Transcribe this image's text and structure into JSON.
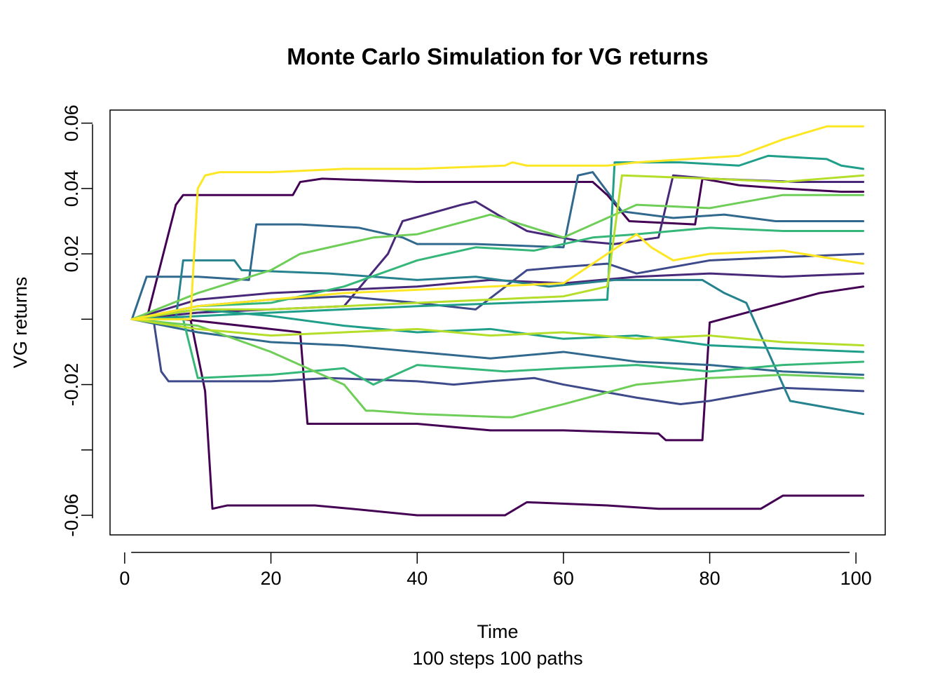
{
  "chart_data": {
    "type": "line",
    "title": "Monte Carlo Simulation for VG returns",
    "xlabel": "Time",
    "subtitle": "100 steps 100 paths",
    "ylabel": "VG returns",
    "xlim": [
      -2,
      104
    ],
    "ylim": [
      -0.066,
      0.064
    ],
    "x_ticks": [
      0,
      20,
      40,
      60,
      80,
      100
    ],
    "y_ticks": [
      -0.06,
      -0.04,
      -0.02,
      0,
      0.02,
      0.04,
      0.06
    ],
    "y_tick_labels": [
      "-0.06",
      "",
      "-0.02",
      "",
      "0.02",
      "0.04",
      "0.06"
    ],
    "grid": false,
    "legend": "none",
    "path_count": 100,
    "steps": 100,
    "palette": [
      "#440154",
      "#482878",
      "#3E4A89",
      "#31688E",
      "#26828E",
      "#1F9E89",
      "#35B779",
      "#6ECE58",
      "#B5DE2B",
      "#FDE725"
    ],
    "series": [
      {
        "color": "#440154",
        "x": [
          1,
          3,
          7,
          8,
          23,
          24,
          27,
          40,
          47,
          64,
          66,
          69,
          78,
          79,
          84,
          90,
          98,
          101
        ],
        "values": [
          0,
          0,
          0.035,
          0.038,
          0.038,
          0.042,
          0.043,
          0.042,
          0.042,
          0.042,
          0.038,
          0.03,
          0.029,
          0.043,
          0.041,
          0.04,
          0.039,
          0.039
        ]
      },
      {
        "color": "#440154",
        "x": [
          1,
          9,
          11,
          12,
          14,
          26,
          31,
          40,
          47,
          52,
          55,
          66,
          73,
          80,
          87,
          90,
          97,
          101
        ],
        "values": [
          0,
          0,
          -0.022,
          -0.058,
          -0.057,
          -0.057,
          -0.058,
          -0.06,
          -0.06,
          -0.06,
          -0.056,
          -0.057,
          -0.058,
          -0.058,
          -0.058,
          -0.054,
          -0.054,
          -0.054
        ]
      },
      {
        "color": "#440154",
        "x": [
          1,
          8,
          24,
          25,
          32,
          40,
          50,
          60,
          73,
          74,
          79,
          80,
          95,
          101
        ],
        "values": [
          0,
          0,
          -0.004,
          -0.032,
          -0.032,
          -0.032,
          -0.034,
          -0.034,
          -0.035,
          -0.037,
          -0.037,
          -0.001,
          0.008,
          0.01
        ]
      },
      {
        "color": "#482878",
        "x": [
          1,
          10,
          20,
          30,
          36,
          38,
          46,
          48,
          51,
          55,
          62,
          67,
          73,
          75,
          80,
          92,
          101
        ],
        "values": [
          0,
          0.002,
          0.003,
          0.004,
          0.02,
          0.03,
          0.035,
          0.036,
          0.032,
          0.027,
          0.024,
          0.023,
          0.025,
          0.044,
          0.043,
          0.042,
          0.042
        ]
      },
      {
        "color": "#482878",
        "x": [
          1,
          10,
          20,
          30,
          40,
          50,
          60,
          70,
          80,
          90,
          101
        ],
        "values": [
          0,
          0.006,
          0.008,
          0.009,
          0.01,
          0.012,
          0.011,
          0.013,
          0.014,
          0.013,
          0.014
        ]
      },
      {
        "color": "#3E4A89",
        "x": [
          1,
          4,
          5,
          6,
          10,
          20,
          28,
          40,
          45,
          50,
          56,
          60,
          70,
          73,
          76,
          80,
          90,
          101
        ],
        "values": [
          0,
          -0.001,
          -0.016,
          -0.019,
          -0.019,
          -0.019,
          -0.018,
          -0.019,
          -0.02,
          -0.019,
          -0.018,
          -0.02,
          -0.024,
          -0.025,
          -0.026,
          -0.025,
          -0.021,
          -0.022
        ]
      },
      {
        "color": "#3E4A89",
        "x": [
          1,
          10,
          20,
          30,
          40,
          48,
          55,
          60,
          66,
          70,
          80,
          90,
          101
        ],
        "values": [
          0,
          0.004,
          0.006,
          0.007,
          0.005,
          0.003,
          0.015,
          0.016,
          0.017,
          0.014,
          0.018,
          0.019,
          0.02
        ]
      },
      {
        "color": "#31688E",
        "x": [
          1,
          3,
          10,
          17,
          18,
          24,
          32,
          38,
          40,
          48,
          60,
          62,
          64,
          68,
          75,
          82,
          89,
          101
        ],
        "values": [
          0,
          0.013,
          0.013,
          0.012,
          0.029,
          0.029,
          0.028,
          0.025,
          0.023,
          0.023,
          0.022,
          0.044,
          0.045,
          0.033,
          0.031,
          0.032,
          0.03,
          0.03
        ]
      },
      {
        "color": "#31688E",
        "x": [
          1,
          10,
          20,
          30,
          40,
          50,
          60,
          70,
          80,
          90,
          101
        ],
        "values": [
          0,
          -0.004,
          -0.007,
          -0.008,
          -0.01,
          -0.012,
          -0.01,
          -0.013,
          -0.014,
          -0.016,
          -0.017
        ]
      },
      {
        "color": "#26828E",
        "x": [
          1,
          7,
          8,
          15,
          16,
          28,
          40,
          48,
          58,
          67,
          79,
          82,
          85,
          91,
          101
        ],
        "values": [
          0,
          0,
          0.018,
          0.018,
          0.015,
          0.014,
          0.012,
          0.013,
          0.01,
          0.012,
          0.012,
          0.008,
          0.005,
          -0.025,
          -0.029
        ]
      },
      {
        "color": "#1F9E89",
        "x": [
          1,
          20,
          40,
          66,
          67,
          76,
          84,
          88,
          96,
          98,
          101
        ],
        "values": [
          0,
          0.002,
          0.004,
          0.006,
          0.048,
          0.048,
          0.047,
          0.05,
          0.049,
          0.047,
          0.046
        ]
      },
      {
        "color": "#1F9E89",
        "x": [
          1,
          10,
          20,
          30,
          40,
          50,
          60,
          70,
          80,
          90,
          101
        ],
        "values": [
          0,
          0.003,
          0.001,
          -0.002,
          -0.004,
          -0.003,
          -0.006,
          -0.005,
          -0.008,
          -0.009,
          -0.01
        ]
      },
      {
        "color": "#35B779",
        "x": [
          1,
          10,
          20,
          30,
          40,
          48,
          56,
          64,
          70,
          80,
          90,
          101
        ],
        "values": [
          0,
          0.004,
          0.005,
          0.01,
          0.018,
          0.022,
          0.021,
          0.025,
          0.026,
          0.028,
          0.027,
          0.027
        ]
      },
      {
        "color": "#35B779",
        "x": [
          1,
          8,
          10,
          20,
          30,
          34,
          38,
          40,
          52,
          60,
          70,
          80,
          90,
          101
        ],
        "values": [
          0,
          0,
          -0.018,
          -0.017,
          -0.015,
          -0.02,
          -0.016,
          -0.014,
          -0.016,
          -0.015,
          -0.014,
          -0.016,
          -0.014,
          -0.013
        ]
      },
      {
        "color": "#6ECE58",
        "x": [
          1,
          10,
          20,
          30,
          33,
          34,
          40,
          52,
          53,
          60,
          70,
          80,
          90,
          101
        ],
        "values": [
          0,
          -0.002,
          -0.01,
          -0.02,
          -0.028,
          -0.028,
          -0.029,
          -0.03,
          -0.03,
          -0.026,
          -0.02,
          -0.018,
          -0.017,
          -0.018
        ]
      },
      {
        "color": "#6ECE58",
        "x": [
          1,
          10,
          20,
          24,
          30,
          34,
          40,
          50,
          60,
          70,
          80,
          90,
          101
        ],
        "values": [
          0,
          0.008,
          0.015,
          0.02,
          0.023,
          0.025,
          0.026,
          0.032,
          0.025,
          0.035,
          0.034,
          0.038,
          0.038
        ]
      },
      {
        "color": "#B5DE2B",
        "x": [
          1,
          10,
          20,
          30,
          40,
          50,
          60,
          66,
          68,
          80,
          90,
          101
        ],
        "values": [
          0,
          0.003,
          0.003,
          0.004,
          0.005,
          0.006,
          0.007,
          0.01,
          0.044,
          0.043,
          0.042,
          0.044
        ]
      },
      {
        "color": "#B5DE2B",
        "x": [
          1,
          10,
          20,
          30,
          40,
          50,
          60,
          70,
          80,
          90,
          101
        ],
        "values": [
          0,
          -0.003,
          -0.005,
          -0.004,
          -0.003,
          -0.005,
          -0.004,
          -0.006,
          -0.005,
          -0.007,
          -0.008
        ]
      },
      {
        "color": "#FDE725",
        "x": [
          1,
          9,
          10,
          11,
          13,
          20,
          30,
          40,
          52,
          53,
          55,
          66,
          70,
          84,
          90,
          96,
          101
        ],
        "values": [
          0,
          0,
          0.04,
          0.044,
          0.045,
          0.045,
          0.046,
          0.046,
          0.047,
          0.048,
          0.047,
          0.047,
          0.048,
          0.05,
          0.055,
          0.059,
          0.059
        ]
      },
      {
        "color": "#FDE725",
        "x": [
          1,
          10,
          20,
          30,
          40,
          50,
          60,
          70,
          72,
          75,
          80,
          90,
          101
        ],
        "values": [
          0,
          0.004,
          0.006,
          0.008,
          0.009,
          0.01,
          0.011,
          0.026,
          0.022,
          0.018,
          0.02,
          0.021,
          0.017
        ]
      }
    ]
  }
}
